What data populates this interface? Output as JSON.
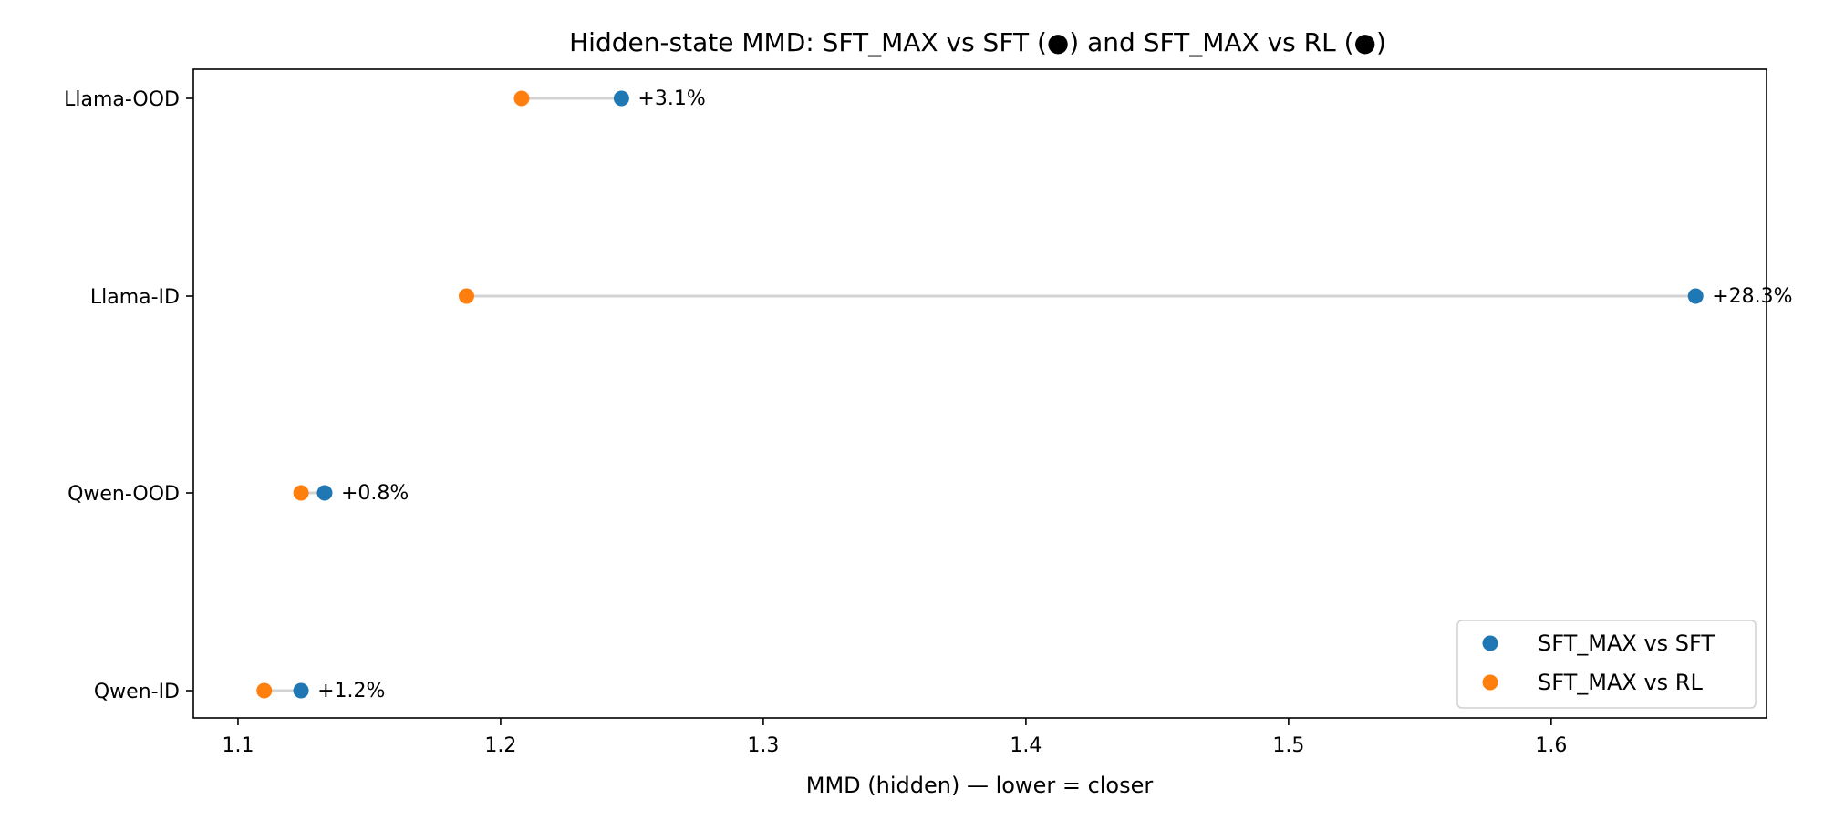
{
  "chart_data": {
    "type": "scatter",
    "title": "Hidden-state MMD: SFT_MAX vs SFT (●) and SFT_MAX vs RL (●)",
    "xlabel": "MMD (hidden)  — lower = closer",
    "ylabel": "",
    "xlim": [
      1.083,
      1.682
    ],
    "xticks": [
      "1.1",
      "1.2",
      "1.3",
      "1.4",
      "1.5",
      "1.6"
    ],
    "xtick_values": [
      1.1,
      1.2,
      1.3,
      1.4,
      1.5,
      1.6
    ],
    "categories": [
      "Llama-OOD",
      "Llama-ID",
      "Qwen-OOD",
      "Qwen-ID"
    ],
    "series": [
      {
        "name": "SFT_MAX vs SFT",
        "color": "#1f77b4",
        "values": [
          1.246,
          1.655,
          1.133,
          1.124
        ]
      },
      {
        "name": "SFT_MAX vs RL",
        "color": "#ff7f0e",
        "values": [
          1.208,
          1.187,
          1.124,
          1.11
        ]
      }
    ],
    "annotations": [
      "+3.1%",
      "+28.3%",
      "+0.8%",
      "+1.2%"
    ],
    "connector_color": "#d3d3d3",
    "grid": false,
    "legend_position": "lower right"
  }
}
